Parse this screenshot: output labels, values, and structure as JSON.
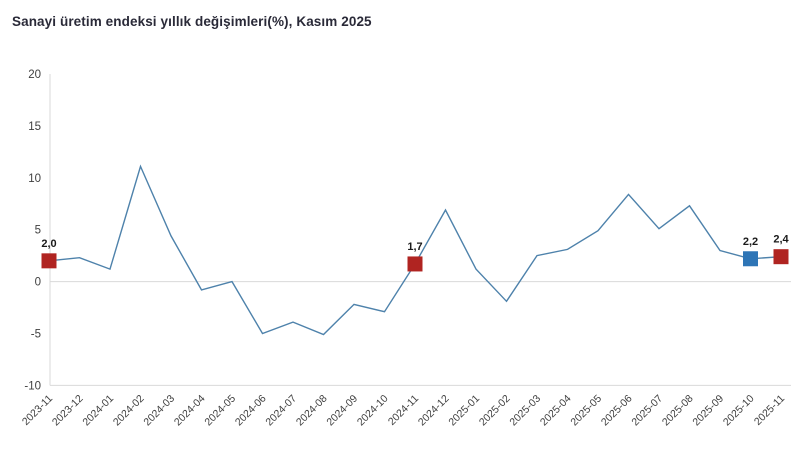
{
  "title": "Sanayi üretim endeksi yıllık değişimleri(%), Kasım 2025",
  "chart_data": {
    "type": "line",
    "title": "Sanayi üretim endeksi yıllık değişimleri(%), Kasım 2025",
    "x": [
      "2023-11",
      "2023-12",
      "2024-01",
      "2024-02",
      "2024-03",
      "2024-04",
      "2024-05",
      "2024-06",
      "2024-07",
      "2024-08",
      "2024-09",
      "2024-10",
      "2024-11",
      "2024-12",
      "2025-01",
      "2025-02",
      "2025-03",
      "2025-04",
      "2025-05",
      "2025-06",
      "2025-07",
      "2025-08",
      "2025-09",
      "2025-10",
      "2025-11"
    ],
    "values": [
      2.0,
      2.3,
      1.2,
      11.1,
      4.4,
      -0.8,
      0.0,
      -5.0,
      -3.9,
      -5.1,
      -2.2,
      -2.9,
      1.7,
      6.9,
      1.2,
      -1.9,
      2.5,
      3.1,
      4.9,
      8.4,
      5.1,
      7.3,
      3.0,
      2.2,
      2.4
    ],
    "ylim": [
      -10,
      20
    ],
    "yticks": [
      20,
      15,
      10,
      5,
      0,
      -5,
      -10
    ],
    "xlabel": "",
    "ylabel": "",
    "legend": "none",
    "grid": "zero-line and bottom axis line only",
    "line_color": "#4e82ab",
    "axis_color": "#d9d9d9",
    "tick_color": "#404040",
    "label_color": "#1a1a1a",
    "annotations": [
      {
        "x": "2023-11",
        "index": 0,
        "label": "2,0",
        "marker": "square",
        "marker_color": "#b02421"
      },
      {
        "x": "2024-11",
        "index": 12,
        "label": "1,7",
        "marker": "square",
        "marker_color": "#b02421"
      },
      {
        "x": "2025-10",
        "index": 23,
        "label": "2,2",
        "marker": "square",
        "marker_color": "#2e75b6"
      },
      {
        "x": "2025-11",
        "index": 24,
        "label": "2,4",
        "marker": "square",
        "marker_color": "#b02421"
      }
    ]
  }
}
